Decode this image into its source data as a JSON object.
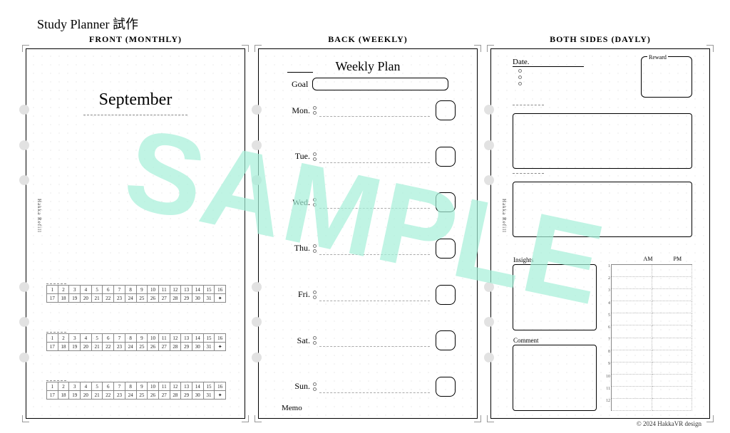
{
  "page_title": "Study Planner 試作",
  "watermark": "SAMPLE",
  "copyright": "© 2024 HakkaVR design",
  "brand_vertical": "Hakka Refill",
  "watermark_color": "#a6f0d9",
  "panels": {
    "monthly": {
      "header": "FRONT (MONTHLY)",
      "month": "September",
      "calendars": [
        {
          "label": " "
        },
        {
          "label": " "
        },
        {
          "label": " "
        }
      ],
      "days_row1": [
        "1",
        "2",
        "3",
        "4",
        "5",
        "6",
        "7",
        "8",
        "9",
        "10",
        "11",
        "12",
        "13",
        "14",
        "15",
        "16"
      ],
      "days_row2": [
        "17",
        "18",
        "19",
        "20",
        "21",
        "22",
        "23",
        "24",
        "25",
        "26",
        "27",
        "28",
        "29",
        "30",
        "31",
        "✦"
      ]
    },
    "weekly": {
      "header": "BACK (WEEKLY)",
      "title": "Weekly Plan",
      "goal_label": "Goal",
      "memo_label": "Memo",
      "days": [
        "Mon.",
        "Tue.",
        "Wed.",
        "Thu.",
        "Fri.",
        "Sat.",
        "Sun."
      ]
    },
    "daily": {
      "header": "BOTH SIDES (DAYLY)",
      "date_label": "Date.",
      "reward_label": "Reward",
      "insights_label": "Insights",
      "comment_label": "Comment",
      "am_label": "AM",
      "pm_label": "PM",
      "hours": [
        "1",
        "2",
        "3",
        "4",
        "5",
        "6",
        "7",
        "8",
        "9",
        "10",
        "11",
        "12"
      ]
    }
  }
}
